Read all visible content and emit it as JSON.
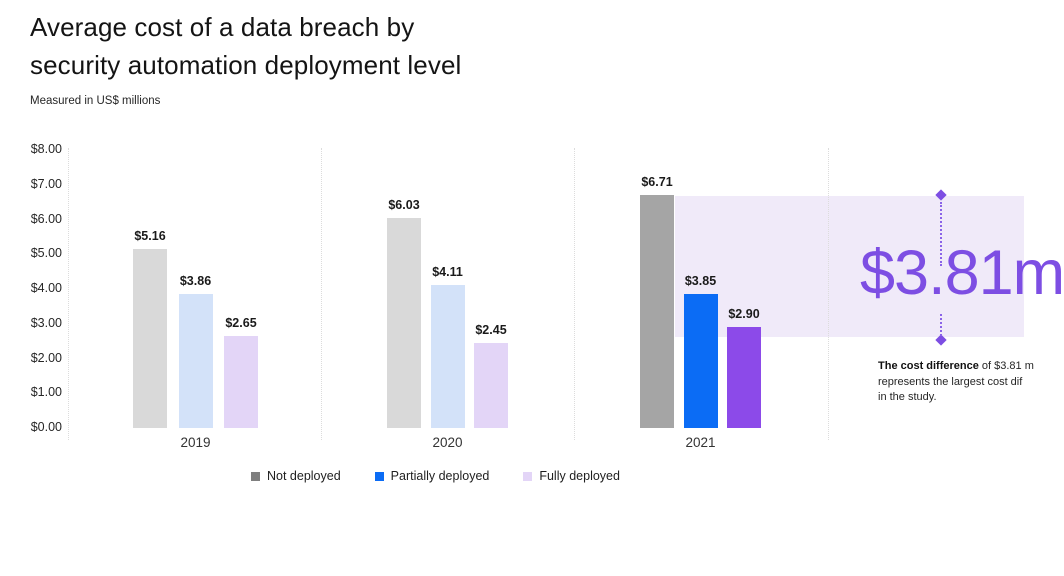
{
  "header": {
    "title_line1": "Average cost of a data breach by",
    "title_line2": "security automation deployment level",
    "subtitle": "Measured in US$ millions"
  },
  "chart_data": {
    "type": "bar",
    "title": "Average cost of a data breach by security automation deployment level",
    "subtitle": "Measured in US$ millions",
    "unit": "US$ millions",
    "categories": [
      "2019",
      "2020",
      "2021"
    ],
    "series": [
      {
        "name": "Not deployed",
        "values": [
          5.16,
          6.03,
          6.71
        ]
      },
      {
        "name": "Partially deployed",
        "values": [
          3.86,
          4.11,
          3.85
        ]
      },
      {
        "name": "Fully deployed",
        "values": [
          2.65,
          2.45,
          2.9
        ]
      }
    ],
    "value_labels": [
      [
        "$5.16",
        "$3.86",
        "$2.65"
      ],
      [
        "$6.03",
        "$4.11",
        "$2.45"
      ],
      [
        "$6.71",
        "$3.85",
        "$2.90"
      ]
    ],
    "bar_colors": [
      [
        "#d9d9d9",
        "#d3e2f9",
        "#e3d5f7"
      ],
      [
        "#d9d9d9",
        "#d3e2f9",
        "#e3d5f7"
      ],
      [
        "#a5a5a5",
        "#0b6cf5",
        "#8c4ae9"
      ]
    ],
    "y_ticks": [
      "$8.00",
      "$7.00",
      "$6.00",
      "$5.00",
      "$4.00",
      "$3.00",
      "$2.00",
      "$1.00",
      "$0.00"
    ],
    "ylim": [
      0,
      8
    ],
    "grid": "vertical group separators only",
    "legend_position": "bottom",
    "xlabel": "",
    "ylabel": "",
    "highlight": {
      "band_from_value": 6.71,
      "band_to_value": 2.9,
      "difference": 3.81,
      "band_color": "#f0eaf9",
      "accent_color": "#7d4ee3"
    }
  },
  "annotation": {
    "big_value": "$3.81m",
    "note_bold": "The cost difference",
    "note_line1_rest": " of $3.81 m",
    "note_line2": "represents the largest cost dif",
    "note_line3": "in the study."
  },
  "legend": {
    "items": [
      {
        "label": "Not deployed",
        "color": "#7f7f7f"
      },
      {
        "label": "Partially deployed",
        "color": "#0b6cf5"
      },
      {
        "label": "Fully deployed",
        "color": "#e3d5f7"
      }
    ]
  }
}
